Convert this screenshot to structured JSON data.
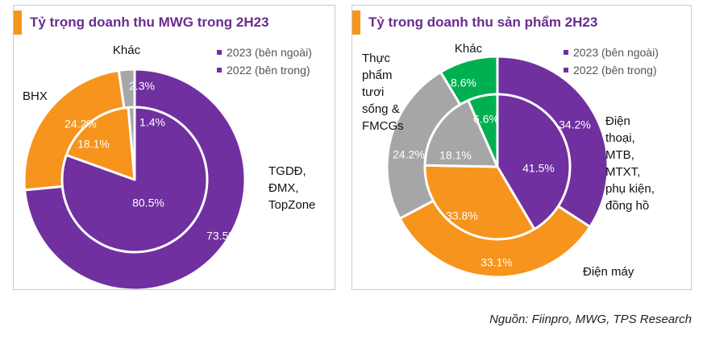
{
  "source": "Nguồn: Fiinpro, MWG, TPS Research",
  "colors": {
    "purple": "#7030a0",
    "orange": "#f7941d",
    "gray": "#a6a6a6",
    "green": "#00b050",
    "title": "#6a2c8e"
  },
  "chart_data": [
    {
      "type": "pie",
      "title": "Tỷ trọng doanh thu MWG trong 2H23",
      "legend": [
        "2023 (bên ngoài)",
        "2022 (bên trong)"
      ],
      "categories": [
        "TGDĐ, ĐMX, TopZone",
        "BHX",
        "Khác"
      ],
      "series": [
        {
          "name": "2023 (bên ngoài)",
          "values": [
            73.5,
            24.2,
            2.3
          ],
          "labels": [
            "73.5%",
            "24.2%",
            "2.3%"
          ]
        },
        {
          "name": "2022 (bên trong)",
          "values": [
            80.5,
            18.1,
            1.4
          ],
          "labels": [
            "80.5%",
            "18.1%",
            "1.4%"
          ]
        }
      ],
      "category_labels": [
        [
          "TGDĐ,",
          "ĐMX,",
          "TopZone"
        ],
        [
          "BHX"
        ],
        [
          "Khác"
        ]
      ]
    },
    {
      "type": "pie",
      "title": "Tỷ trong doanh thu sản phẩm 2H23",
      "legend": [
        "2023 (bên ngoài)",
        "2022 (bên trong)"
      ],
      "categories": [
        "Điện thoại, MTB, MTXT, phụ kiện, đồng hồ",
        "Điện máy",
        "Thực phẩm tươi sống & FMCGs",
        "Khác"
      ],
      "series": [
        {
          "name": "2023 (bên ngoài)",
          "values": [
            34.2,
            33.1,
            24.2,
            8.6
          ],
          "labels": [
            "34.2%",
            "33.1%",
            "24.2%",
            "8.6%"
          ]
        },
        {
          "name": "2022 (bên trong)",
          "values": [
            41.5,
            33.8,
            18.1,
            6.6
          ],
          "labels": [
            "41.5%",
            "33.8%",
            "18.1%",
            "6.6%"
          ]
        }
      ],
      "category_labels": [
        [
          "Điện",
          "thoại,",
          "MTB,",
          "MTXT,",
          "phụ kiện,",
          "đồng hồ"
        ],
        [
          "Điện máy"
        ],
        [
          "Thực",
          "phẩm",
          "tươi",
          "sống &",
          "FMCGs"
        ],
        [
          "Khác"
        ]
      ]
    }
  ]
}
